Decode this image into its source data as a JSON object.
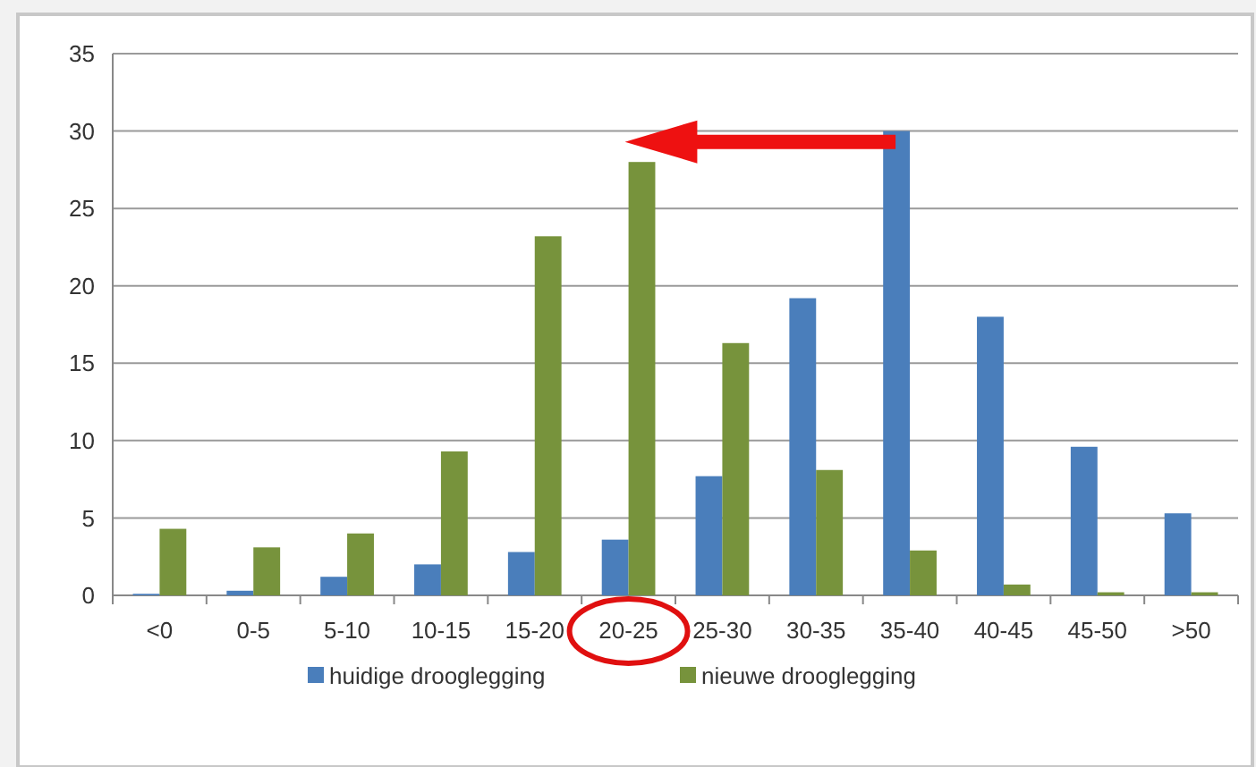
{
  "chart_data": {
    "type": "bar",
    "categories": [
      "<0",
      "0-5",
      "5-10",
      "10-15",
      "15-20",
      "20-25",
      "25-30",
      "30-35",
      "35-40",
      "40-45",
      "45-50",
      ">50"
    ],
    "series": [
      {
        "name": "huidige drooglegging",
        "color": "#4a7ebb",
        "values": [
          0.1,
          0.3,
          1.2,
          2.0,
          2.8,
          3.6,
          7.7,
          19.2,
          30,
          18,
          9.6,
          5.3
        ]
      },
      {
        "name": "nieuwe drooglegging",
        "color": "#77933c",
        "values": [
          4.3,
          3.1,
          4.0,
          9.3,
          23.2,
          28,
          16.3,
          8.1,
          2.9,
          0.7,
          0.2,
          0.2
        ]
      }
    ],
    "ylim": [
      0,
      35
    ],
    "yticks": [
      0,
      5,
      10,
      15,
      20,
      25,
      30,
      35
    ],
    "grid": "y",
    "legend": "bottom"
  }
}
